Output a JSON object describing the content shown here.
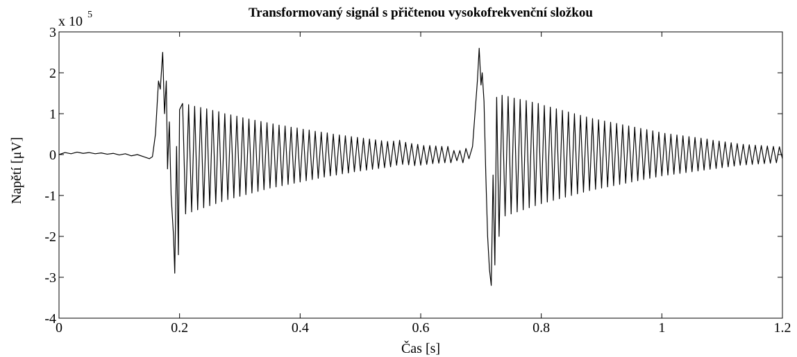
{
  "chart_data": {
    "type": "line",
    "title": "Transformovaný signál s přičtenou vysokofrekvenční složkou",
    "x_label": "Čas [s]",
    "y_label": "Napětí [μV]",
    "y_multiplier": "x 10",
    "y_exponent": "5",
    "xlim": [
      0,
      1.2
    ],
    "ylim": [
      -4,
      3
    ],
    "xticks": [
      0,
      0.2,
      0.4,
      0.6,
      0.8,
      1,
      1.2
    ],
    "yticks": [
      -4,
      -3,
      -2,
      -1,
      0,
      1,
      2,
      3
    ],
    "grid": false,
    "x": [
      0,
      0.01,
      0.02,
      0.03,
      0.04,
      0.05,
      0.06,
      0.07,
      0.08,
      0.09,
      0.1,
      0.11,
      0.12,
      0.13,
      0.14,
      0.15,
      0.155,
      0.16,
      0.165,
      0.168,
      0.172,
      0.175,
      0.178,
      0.18,
      0.183,
      0.186,
      0.19,
      0.192,
      0.195,
      0.198,
      0.2,
      0.205,
      0.21,
      0.215,
      0.22,
      0.225,
      0.23,
      0.235,
      0.24,
      0.245,
      0.25,
      0.255,
      0.26,
      0.265,
      0.27,
      0.275,
      0.28,
      0.285,
      0.29,
      0.295,
      0.3,
      0.305,
      0.31,
      0.315,
      0.32,
      0.325,
      0.33,
      0.335,
      0.34,
      0.345,
      0.35,
      0.355,
      0.36,
      0.365,
      0.37,
      0.375,
      0.38,
      0.385,
      0.39,
      0.395,
      0.4,
      0.405,
      0.41,
      0.415,
      0.42,
      0.425,
      0.43,
      0.435,
      0.44,
      0.445,
      0.45,
      0.455,
      0.46,
      0.465,
      0.47,
      0.475,
      0.48,
      0.485,
      0.49,
      0.495,
      0.5,
      0.505,
      0.51,
      0.515,
      0.52,
      0.525,
      0.53,
      0.535,
      0.54,
      0.545,
      0.55,
      0.555,
      0.56,
      0.565,
      0.57,
      0.575,
      0.58,
      0.585,
      0.59,
      0.595,
      0.6,
      0.605,
      0.61,
      0.615,
      0.62,
      0.625,
      0.63,
      0.635,
      0.64,
      0.645,
      0.65,
      0.655,
      0.66,
      0.665,
      0.67,
      0.675,
      0.68,
      0.686,
      0.69,
      0.694,
      0.697,
      0.7,
      0.702,
      0.705,
      0.708,
      0.711,
      0.714,
      0.717,
      0.72,
      0.723,
      0.726,
      0.73,
      0.735,
      0.74,
      0.745,
      0.75,
      0.755,
      0.76,
      0.765,
      0.77,
      0.775,
      0.78,
      0.785,
      0.79,
      0.795,
      0.8,
      0.805,
      0.81,
      0.815,
      0.82,
      0.825,
      0.83,
      0.835,
      0.84,
      0.845,
      0.85,
      0.855,
      0.86,
      0.865,
      0.87,
      0.875,
      0.88,
      0.885,
      0.89,
      0.895,
      0.9,
      0.905,
      0.91,
      0.915,
      0.92,
      0.925,
      0.93,
      0.935,
      0.94,
      0.945,
      0.95,
      0.955,
      0.96,
      0.965,
      0.97,
      0.975,
      0.98,
      0.985,
      0.99,
      0.995,
      1,
      1.005,
      1.01,
      1.015,
      1.02,
      1.025,
      1.03,
      1.035,
      1.04,
      1.045,
      1.05,
      1.055,
      1.06,
      1.065,
      1.07,
      1.075,
      1.08,
      1.085,
      1.09,
      1.095,
      1.1,
      1.105,
      1.11,
      1.115,
      1.12,
      1.125,
      1.13,
      1.135,
      1.14,
      1.145,
      1.15,
      1.155,
      1.16,
      1.165,
      1.17,
      1.175,
      1.18,
      1.185,
      1.19,
      1.195,
      1.2
    ],
    "series": [
      {
        "color": "#000000",
        "values": [
          0,
          0.05,
          0.02,
          0.06,
          0.03,
          0.05,
          0.02,
          0.04,
          0.01,
          0.03,
          -0.01,
          0.02,
          -0.03,
          0,
          -0.05,
          -0.1,
          -0.05,
          0.5,
          1.8,
          1.6,
          2.5,
          1.0,
          1.8,
          -0.35,
          0.8,
          -1.0,
          -2.0,
          -2.9,
          0.2,
          -2.45,
          1.1,
          1.25,
          -1.45,
          1.22,
          -1.4,
          1.18,
          -1.35,
          1.15,
          -1.3,
          1.12,
          -1.25,
          1.08,
          -1.2,
          1.05,
          -1.15,
          1.0,
          -1.1,
          0.97,
          -1.06,
          0.94,
          -1.02,
          0.9,
          -0.98,
          0.87,
          -0.94,
          0.84,
          -0.9,
          0.81,
          -0.86,
          0.78,
          -0.82,
          0.75,
          -0.79,
          0.72,
          -0.76,
          0.7,
          -0.73,
          0.67,
          -0.7,
          0.65,
          -0.67,
          0.62,
          -0.64,
          0.6,
          -0.61,
          0.57,
          -0.58,
          0.55,
          -0.55,
          0.53,
          -0.52,
          0.5,
          -0.5,
          0.48,
          -0.47,
          0.46,
          -0.45,
          0.44,
          -0.42,
          0.42,
          -0.4,
          0.4,
          -0.38,
          0.38,
          -0.36,
          0.36,
          -0.34,
          0.34,
          -0.32,
          0.32,
          -0.3,
          0.33,
          -0.26,
          0.35,
          -0.24,
          0.3,
          -0.25,
          0.27,
          -0.27,
          0.25,
          -0.26,
          0.22,
          -0.24,
          0.22,
          -0.22,
          0.21,
          -0.21,
          0.2,
          -0.2,
          0.2,
          -0.2,
          0.1,
          -0.15,
          0.1,
          -0.2,
          0.15,
          -0.1,
          0.2,
          1.0,
          1.8,
          2.6,
          1.7,
          2.0,
          1.3,
          -0.5,
          -2.0,
          -2.8,
          -3.2,
          -0.5,
          -2.7,
          1.4,
          -2.0,
          1.45,
          -1.5,
          1.42,
          -1.45,
          1.38,
          -1.4,
          1.35,
          -1.35,
          1.32,
          -1.3,
          1.28,
          -1.25,
          1.25,
          -1.2,
          1.2,
          -1.16,
          1.16,
          -1.12,
          1.12,
          -1.08,
          1.08,
          -1.04,
          1.04,
          -1.0,
          1.0,
          -0.96,
          0.96,
          -0.92,
          0.92,
          -0.88,
          0.88,
          -0.85,
          0.85,
          -0.82,
          0.82,
          -0.79,
          0.79,
          -0.76,
          0.76,
          -0.73,
          0.73,
          -0.7,
          0.7,
          -0.67,
          0.67,
          -0.64,
          0.64,
          -0.61,
          0.61,
          -0.58,
          0.58,
          -0.55,
          0.55,
          -0.52,
          0.52,
          -0.5,
          0.5,
          -0.48,
          0.48,
          -0.46,
          0.46,
          -0.44,
          0.44,
          -0.42,
          0.42,
          -0.4,
          0.4,
          -0.38,
          0.38,
          -0.36,
          0.35,
          -0.34,
          0.33,
          -0.32,
          0.31,
          -0.3,
          0.29,
          -0.28,
          0.27,
          -0.26,
          0.25,
          -0.25,
          0.24,
          -0.24,
          0.23,
          -0.23,
          0.22,
          -0.22,
          0.21,
          -0.21,
          0.2,
          -0.2,
          0.19,
          -0.1
        ]
      }
    ]
  }
}
